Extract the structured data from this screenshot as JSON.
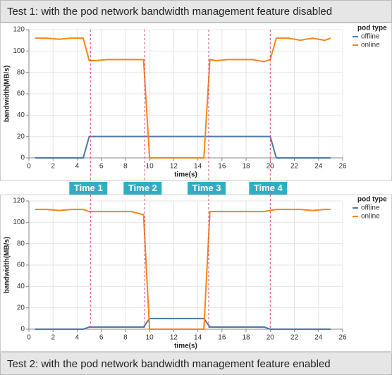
{
  "header": "Test 1: with the pod network bandwidth management feature disabled",
  "footer": "Test 2: with the pod network bandwidth management feature enabled",
  "time_markers": [
    {
      "label": "Time 1",
      "x": 5.1
    },
    {
      "label": "Time 2",
      "x": 9.6
    },
    {
      "label": "Time 3",
      "x": 14.9
    },
    {
      "label": "Time 4",
      "x": 20.0
    }
  ],
  "chart_data": [
    {
      "type": "line",
      "x_label": "time(s)",
      "y_label": "bandwidth(MB/s)",
      "legend_title": "pod type",
      "x": [
        0.5,
        1.5,
        2.5,
        3.5,
        4.5,
        5,
        5.5,
        6.5,
        7.5,
        8.5,
        9.5,
        10,
        10.5,
        11.5,
        12.5,
        13.5,
        14.5,
        15,
        15.5,
        16.5,
        17.5,
        18.5,
        19.5,
        20,
        20.5,
        21.5,
        22.5,
        23.5,
        24.5,
        25
      ],
      "series": [
        {
          "name": "offline",
          "color": "#4c78a8",
          "values": [
            0,
            0,
            0,
            0,
            0,
            20,
            20,
            20,
            20,
            20,
            20,
            20,
            20,
            20,
            20,
            20,
            20,
            20,
            20,
            20,
            20,
            20,
            20,
            20,
            0,
            0,
            0,
            0,
            0,
            0
          ]
        },
        {
          "name": "online",
          "color": "#f58518",
          "values": [
            112,
            112,
            111,
            112,
            112,
            91,
            91,
            92,
            92,
            92,
            92,
            0,
            0,
            0,
            0,
            0,
            0,
            92,
            91,
            92,
            92,
            92,
            90,
            92,
            112,
            112,
            110,
            112,
            110,
            112
          ]
        }
      ],
      "xlim": [
        0,
        26
      ],
      "ylim": [
        0,
        120
      ],
      "xticks": [
        0,
        2,
        4,
        6,
        8,
        10,
        12,
        14,
        16,
        18,
        20,
        22,
        24,
        26
      ],
      "yticks": [
        0,
        20,
        40,
        60,
        80,
        100,
        120
      ],
      "grid": true
    },
    {
      "type": "line",
      "x_label": "time(s)",
      "y_label": "bandwidth(MB/s)",
      "legend_title": "pod type",
      "x": [
        0.5,
        1.5,
        2.5,
        3.5,
        4.5,
        5,
        5.5,
        6.5,
        7.5,
        8.5,
        9.5,
        10,
        10.5,
        11.5,
        12.5,
        13.5,
        14.5,
        15,
        15.5,
        16.5,
        17.5,
        18.5,
        19.5,
        20,
        20.5,
        21.5,
        22.5,
        23.5,
        24.5,
        25
      ],
      "series": [
        {
          "name": "offline",
          "color": "#4c78a8",
          "values": [
            0,
            0,
            0,
            0,
            0,
            2,
            2,
            2,
            2,
            2,
            2,
            10,
            10,
            10,
            10,
            10,
            10,
            2,
            2,
            2,
            2,
            2,
            2,
            0,
            0,
            0,
            0,
            0,
            0,
            0
          ]
        },
        {
          "name": "online",
          "color": "#f58518",
          "values": [
            112,
            112,
            111,
            112,
            112,
            110,
            110,
            110,
            110,
            110,
            107,
            0,
            0,
            0,
            0,
            0,
            0,
            110,
            110,
            110,
            110,
            110,
            110,
            111,
            112,
            112,
            112,
            111,
            112,
            112
          ]
        }
      ],
      "xlim": [
        0,
        26
      ],
      "ylim": [
        0,
        120
      ],
      "xticks": [
        0,
        2,
        4,
        6,
        8,
        10,
        12,
        14,
        16,
        18,
        20,
        22,
        24,
        26
      ],
      "yticks": [
        0,
        20,
        40,
        60,
        80,
        100,
        120
      ],
      "grid": true
    }
  ]
}
